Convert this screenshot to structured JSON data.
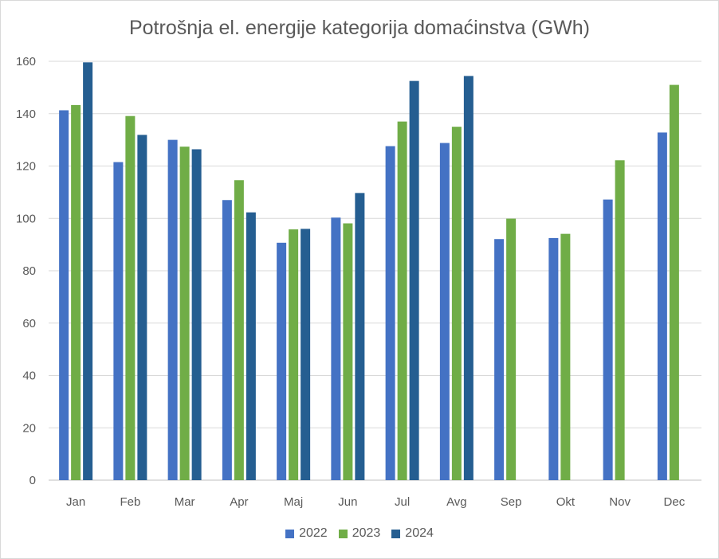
{
  "chart_data": {
    "type": "bar",
    "title": "Potrošnja el. energije kategorija domaćinstva (GWh)",
    "categories": [
      "Jan",
      "Feb",
      "Mar",
      "Apr",
      "Maj",
      "Jun",
      "Jul",
      "Avg",
      "Sep",
      "Okt",
      "Nov",
      "Dec"
    ],
    "series": [
      {
        "name": "2022",
        "color": "#4472c4",
        "values": [
          141.3,
          121.5,
          130.0,
          107.0,
          90.7,
          100.3,
          127.6,
          128.8,
          92.1,
          92.5,
          107.2,
          132.8
        ]
      },
      {
        "name": "2023",
        "color": "#70ad47",
        "values": [
          143.3,
          139.1,
          127.4,
          114.6,
          95.8,
          98.1,
          137.0,
          135.0,
          99.9,
          94.1,
          122.2,
          151.0
        ]
      },
      {
        "name": "2024",
        "color": "#255e91",
        "values": [
          159.6,
          131.9,
          126.4,
          102.3,
          96.0,
          109.7,
          152.5,
          154.4,
          null,
          null,
          null,
          null
        ]
      }
    ],
    "ylim": [
      0,
      160
    ],
    "yticks": [
      0,
      20,
      40,
      60,
      80,
      100,
      120,
      140,
      160
    ],
    "xlabel": "",
    "ylabel": "",
    "grid": true,
    "legend_position": "bottom"
  }
}
